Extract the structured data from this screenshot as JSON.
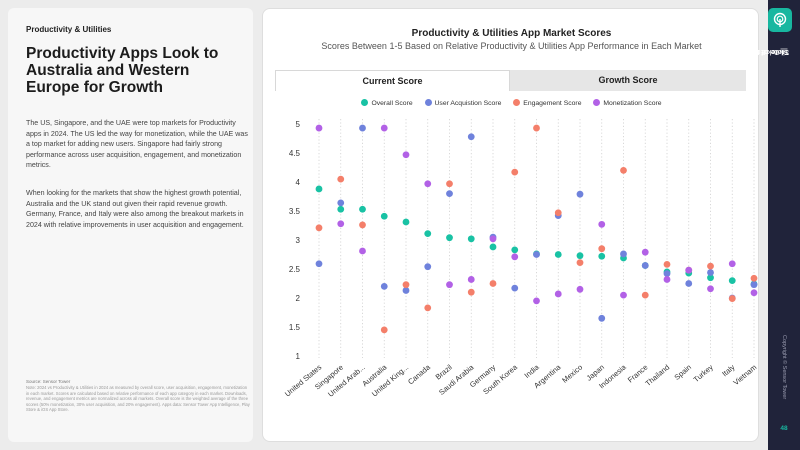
{
  "left": {
    "section_label": "Productivity & Utilities",
    "headline": "Productivity Apps Look to Australia and Western Europe for Growth",
    "para1": "The US, Singapore, and the UAE were top markets for Productivity apps in 2024. The US led the way for monetization, while the UAE was a top market for adding new users. Singapore had fairly strong performance across user acquisition, engagement, and monetization metrics.",
    "para2": "When looking for the markets that show the highest growth potential, Australia and the UK stand out given their rapid revenue growth. Germany, France, and Italy were also among the breakout markets in 2024 with relative improvements in user acquisition and engagement.",
    "source_title": "Source: Sensor Tower",
    "source_note": "Note: 2024 vs Productivity & Utilities in 2024 as measured by overall score, user acquisition, engagement, monetization in each market. Scores are calculated based on relative performance of each app category in each market. Downloads, revenue, and engagement metrics are normalized across all markets. Overall score is the weighted average of the three scores (50% monetization, 30% user acquisition, and 20% engagement). Apps data: Sensor Tower App Intelligence, Play Store & iOS App Store."
  },
  "chart": {
    "title": "Productivity & Utilities App Market Scores",
    "subtitle": "Scores Between 1-5 Based on Relative Productivity & Utilities App Performance in Each Market",
    "tabs": [
      "Current Score",
      "Growth Score"
    ]
  },
  "chart_data": {
    "type": "scatter",
    "categories": [
      "United States",
      "Singapore",
      "United Arab...",
      "Australia",
      "United King...",
      "Canada",
      "Brazil",
      "Saudi Arabia",
      "Germany",
      "South Korea",
      "India",
      "Argentina",
      "Mexico",
      "Japan",
      "Indonesia",
      "France",
      "Thailand",
      "Spain",
      "Turkey",
      "Italy",
      "Vietnam"
    ],
    "ylim": [
      1,
      5
    ],
    "yticks": [
      1,
      1.5,
      2,
      2.5,
      3,
      3.5,
      4,
      4.5,
      5
    ],
    "grid": false,
    "legend_position": "top",
    "series": [
      {
        "name": "Overall Score",
        "color": "#19c2a4",
        "values": [
          3.88,
          3.53,
          3.53,
          3.41,
          3.31,
          3.11,
          3.04,
          3.02,
          2.88,
          2.83,
          2.76,
          2.75,
          2.73,
          2.72,
          2.69,
          2.56,
          2.45,
          2.43,
          2.35,
          2.3,
          2.24
        ]
      },
      {
        "name": "User Acquistion Score",
        "color": "#6f82dc",
        "values": [
          2.59,
          3.64,
          4.93,
          2.2,
          2.13,
          2.54,
          3.8,
          4.78,
          3.05,
          2.17,
          2.75,
          3.42,
          3.79,
          1.65,
          2.76,
          2.56,
          2.42,
          2.25,
          2.44,
          2.0,
          2.23
        ]
      },
      {
        "name": "Engagement Score",
        "color": "#f47f6a",
        "values": [
          3.21,
          4.05,
          3.26,
          1.45,
          2.23,
          1.83,
          3.97,
          2.1,
          2.25,
          4.17,
          4.93,
          3.47,
          2.61,
          2.85,
          4.2,
          2.05,
          2.58,
          2.48,
          2.55,
          1.99,
          2.34
        ]
      },
      {
        "name": "Monetization Score",
        "color": "#b261e6",
        "values": [
          4.93,
          3.28,
          2.81,
          4.93,
          4.47,
          3.97,
          2.23,
          2.32,
          3.02,
          2.71,
          1.95,
          2.07,
          2.15,
          3.27,
          2.05,
          2.79,
          2.32,
          2.48,
          2.16,
          2.59,
          2.09
        ]
      }
    ]
  },
  "sidebar": {
    "title_bold": "State of Mobile 2025",
    "title_rest": "TikTok Edition",
    "copyright": "Copyright © Sensor Tower",
    "page_number": "48"
  }
}
